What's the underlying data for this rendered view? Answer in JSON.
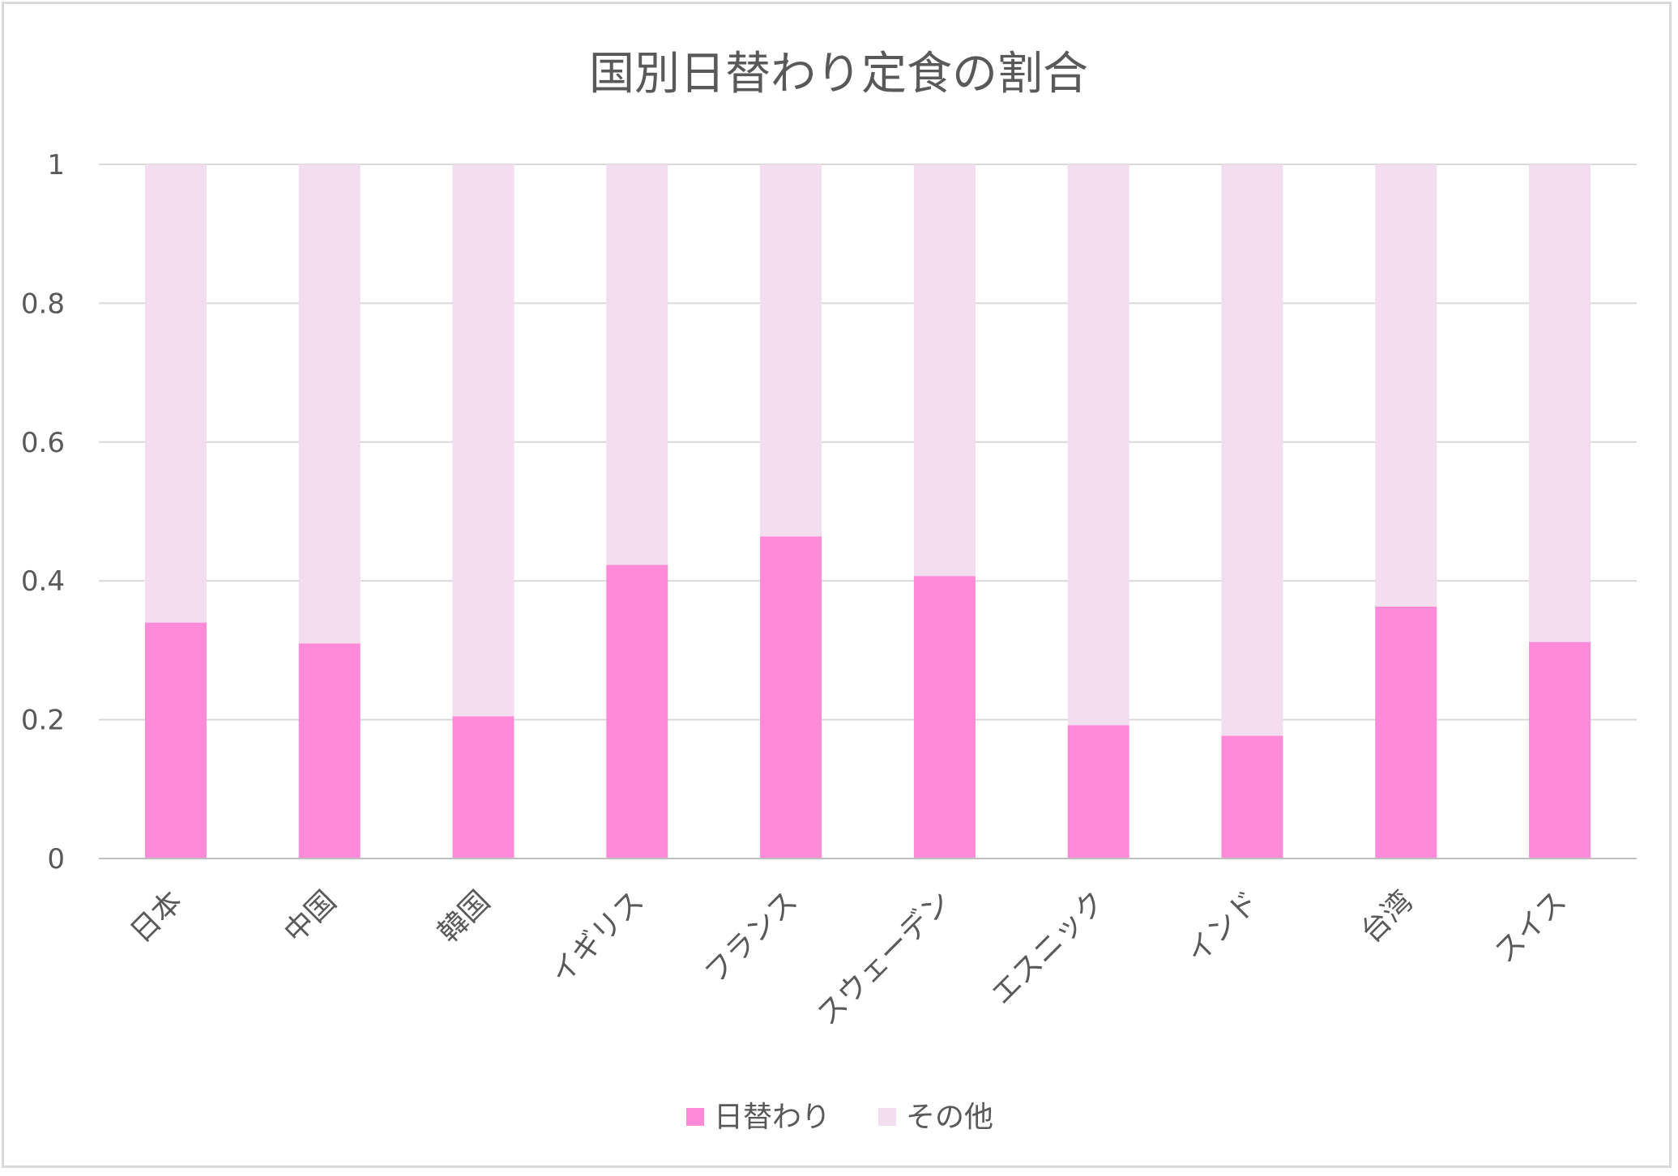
{
  "chart_data": {
    "type": "bar",
    "stacked": true,
    "title": "国別日替わり定食の割合",
    "xlabel": "",
    "ylabel": "",
    "ylim": [
      0,
      1
    ],
    "yticks": [
      {
        "value": 0,
        "label": "0"
      },
      {
        "value": 0.2,
        "label": "0.2"
      },
      {
        "value": 0.4,
        "label": "0.4"
      },
      {
        "value": 0.6,
        "label": "0.6"
      },
      {
        "value": 0.8,
        "label": "0.8"
      },
      {
        "value": 1,
        "label": "1"
      }
    ],
    "grid": true,
    "legend_position": "bottom",
    "categories": [
      "日本",
      "中国",
      "韓国",
      "イギリス",
      "フランス",
      "スウェーデン",
      "エスニック",
      "インド",
      "台湾",
      "スイス"
    ],
    "series": [
      {
        "name": "日替わり",
        "color": "#ff8ad8",
        "values": [
          0.34,
          0.31,
          0.205,
          0.423,
          0.464,
          0.407,
          0.192,
          0.177,
          0.363,
          0.312
        ]
      },
      {
        "name": "その他",
        "color": "#f2deee",
        "values": [
          0.66,
          0.69,
          0.795,
          0.577,
          0.536,
          0.593,
          0.808,
          0.823,
          0.637,
          0.688
        ]
      }
    ],
    "colors": {
      "grid": "#d9d9d9",
      "axis": "#bfbfbf",
      "text": "#595959"
    }
  }
}
